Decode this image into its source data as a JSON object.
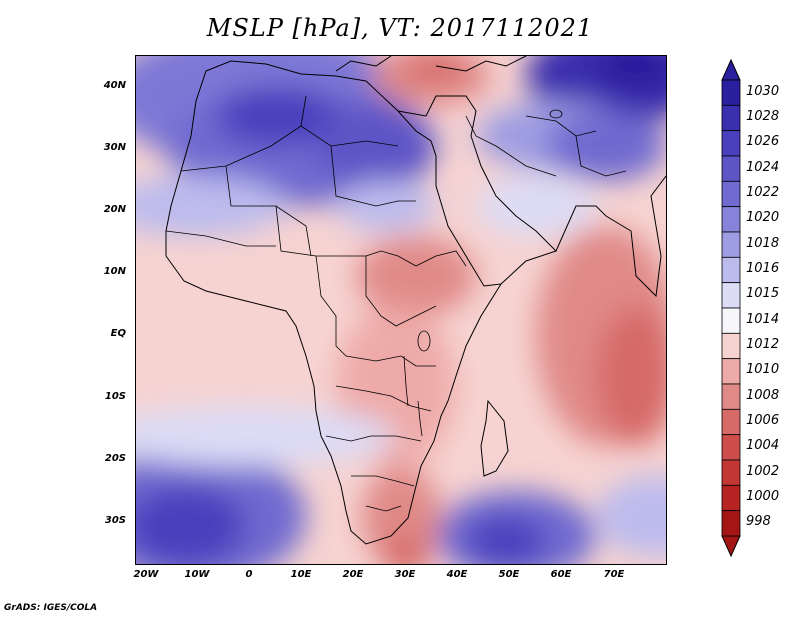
{
  "title": "MSLP [hPa], VT: 2017112021",
  "credit": "GrADS: IGES/COLA",
  "map": {
    "lat_labels": [
      "40N",
      "30N",
      "20N",
      "10N",
      "EQ",
      "10S",
      "20S",
      "30S"
    ],
    "lon_labels": [
      "20W",
      "10W",
      "0",
      "10E",
      "20E",
      "30E",
      "40E",
      "50E",
      "60E",
      "70E"
    ]
  },
  "colorbar": {
    "levels": [
      "1030",
      "1028",
      "1026",
      "1024",
      "1022",
      "1020",
      "1018",
      "1016",
      "1015",
      "1014",
      "1012",
      "1010",
      "1008",
      "1006",
      "1004",
      "1002",
      "1000",
      "998"
    ],
    "colors": [
      "#2a1f9e",
      "#3a2fae",
      "#4a40bd",
      "#5d55c6",
      "#6f6bd0",
      "#8683da",
      "#9e9de3",
      "#bcbbee",
      "#dcdcf6",
      "#f7f7fb",
      "#f6d3d1",
      "#eeaaa8",
      "#e08a88",
      "#d66a68",
      "#cc4d4b",
      "#c23634",
      "#b52422",
      "#a41616"
    ]
  }
}
